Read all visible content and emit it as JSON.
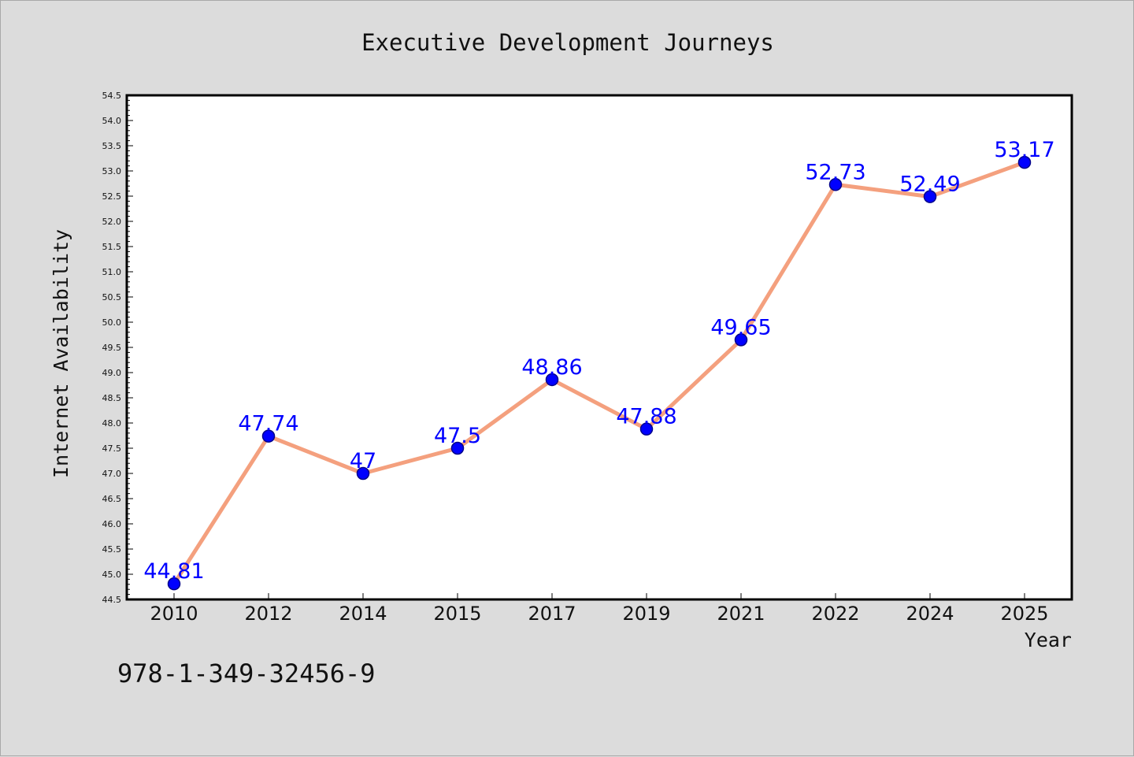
{
  "chart_data": {
    "type": "line",
    "title": "Executive Development Journeys",
    "xlabel": "Year",
    "ylabel": "Internet Availability",
    "categories": [
      "2010",
      "2012",
      "2014",
      "2015",
      "2017",
      "2019",
      "2021",
      "2022",
      "2024",
      "2025"
    ],
    "series": [
      {
        "values": [
          44.81,
          47.74,
          47,
          47.5,
          48.86,
          47.88,
          49.65,
          52.73,
          52.49,
          53.17
        ],
        "data_labels": [
          "44.81",
          "47.74",
          "47",
          "47.5",
          "48.86",
          "47.88",
          "49.65",
          "52.73",
          "52.49",
          "53.17"
        ]
      }
    ],
    "ylim": [
      44.5,
      54.5
    ],
    "y_ticks": [
      "44.5",
      "45.0",
      "45.5",
      "46.0",
      "46.5",
      "47.0",
      "47.5",
      "48.0",
      "48.5",
      "49.0",
      "49.5",
      "50.0",
      "50.5",
      "51.0",
      "51.5",
      "52.0",
      "52.5",
      "53.0",
      "53.5",
      "54.0",
      "54.5"
    ],
    "grid": false,
    "legend": "none",
    "colors": {
      "line": "#f4a07e",
      "marker_fill": "#0000ff",
      "marker_edge": "#00008b",
      "data_label": "#0000ff",
      "background": "#dcdcdc",
      "plot_background": "#ffffff"
    }
  },
  "footnote": "978-1-349-32456-9"
}
